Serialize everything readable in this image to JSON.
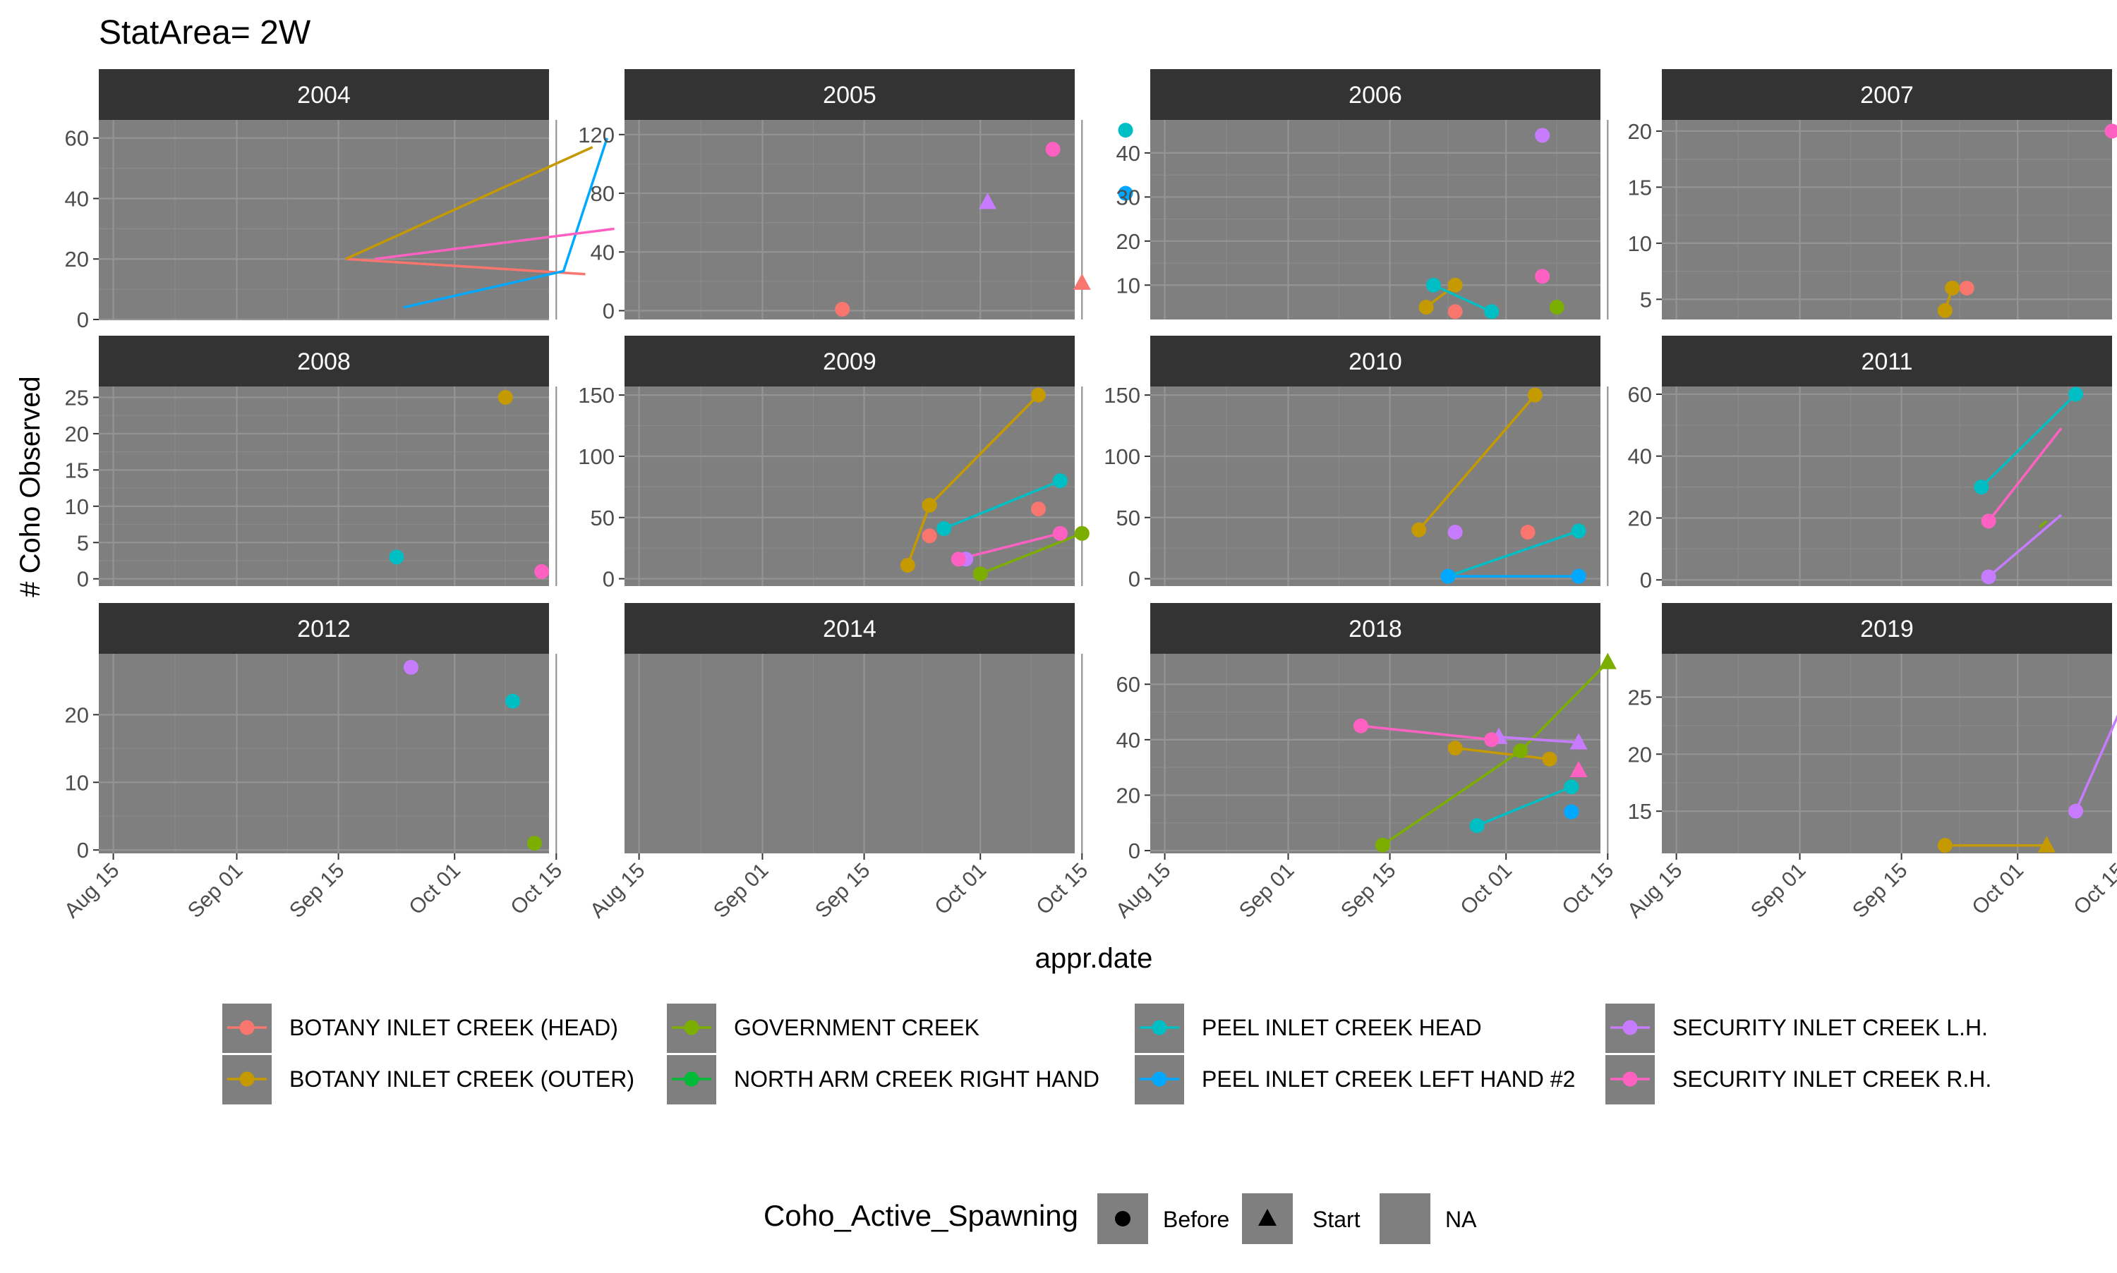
{
  "chart_data": {
    "type": "line",
    "title": "StatArea= 2W",
    "xlabel": "appr.date",
    "ylabel": "# Coho Observed",
    "x_ticks": [
      "Aug 15",
      "Sep 01",
      "Sep 15",
      "Oct 01",
      "Oct 15"
    ],
    "colors": {
      "BOTANY INLET CREEK (HEAD)": "#F8766D",
      "BOTANY INLET CREEK (OUTER)": "#C49A00",
      "GOVERNMENT CREEK": "#7CAE00",
      "NORTH ARM CREEK RIGHT HAND": "#00BA38",
      "PEEL INLET CREEK HEAD": "#00BFC4",
      "PEEL INLET CREEK LEFT HAND #2": "#00A9FF",
      "SECURITY INLET CREEK L.H.": "#C77CFF",
      "SECURITY INLET CREEK R.H.": "#FF61C3"
    },
    "legend_colour": {
      "items": [
        "BOTANY INLET CREEK (HEAD)",
        "BOTANY INLET CREEK (OUTER)",
        "GOVERNMENT CREEK",
        "NORTH ARM CREEK RIGHT HAND",
        "PEEL INLET CREEK HEAD",
        "PEEL INLET CREEK LEFT HAND #2",
        "SECURITY INLET CREEK L.H.",
        "SECURITY INLET CREEK R.H."
      ]
    },
    "legend_shape": {
      "title": "Coho_Active_Spawning",
      "items": [
        {
          "label": "Before",
          "shape": "circle"
        },
        {
          "label": "Start",
          "shape": "triangle"
        },
        {
          "label": "NA",
          "shape": "none"
        }
      ]
    },
    "grid": true,
    "legend_position": "bottom",
    "panels": [
      {
        "year": "2004",
        "ylim": [
          0,
          66
        ],
        "yticks": [
          0,
          20,
          40,
          60
        ],
        "series": [
          {
            "creek": "BOTANY INLET CREEK (HEAD)",
            "points": [
              [
                "2004-09-16",
                20,
                "NA"
              ],
              [
                "2004-10-19",
                15,
                "NA"
              ]
            ]
          },
          {
            "creek": "BOTANY INLET CREEK (OUTER)",
            "points": [
              [
                "2004-09-16",
                20,
                "NA"
              ],
              [
                "2004-10-20",
                57,
                "NA"
              ]
            ]
          },
          {
            "creek": "PEEL INLET CREEK LEFT HAND #2",
            "points": [
              [
                "2004-09-24",
                4,
                "NA"
              ],
              [
                "2004-10-16",
                16,
                "NA"
              ],
              [
                "2004-10-22",
                60,
                "NA"
              ]
            ]
          },
          {
            "creek": "SECURITY INLET CREEK R.H.",
            "points": [
              [
                "2004-09-20",
                20,
                "NA"
              ],
              [
                "2004-10-23",
                30,
                "NA"
              ]
            ]
          }
        ]
      },
      {
        "year": "2005",
        "ylim": [
          -6,
          130
        ],
        "yticks": [
          0,
          40,
          80,
          120
        ],
        "series": [
          {
            "creek": "BOTANY INLET CREEK (HEAD)",
            "points": [
              [
                "2005-09-12",
                1,
                "Before"
              ]
            ]
          },
          {
            "creek": "BOTANY INLET CREEK (HEAD)",
            "points": [
              [
                "2005-10-15",
                19,
                "Start"
              ]
            ]
          },
          {
            "creek": "PEEL INLET CREEK HEAD",
            "points": [
              [
                "2005-10-21",
                123,
                "Before"
              ]
            ]
          },
          {
            "creek": "PEEL INLET CREEK LEFT HAND #2",
            "points": [
              [
                "2005-10-21",
                80,
                "Before"
              ]
            ]
          },
          {
            "creek": "SECURITY INLET CREEK L.H.",
            "points": [
              [
                "2005-10-02",
                74,
                "Start"
              ]
            ]
          },
          {
            "creek": "SECURITY INLET CREEK R.H.",
            "points": [
              [
                "2005-10-11",
                110,
                "Before"
              ]
            ]
          }
        ]
      },
      {
        "year": "2006",
        "ylim": [
          2.2,
          47.5
        ],
        "yticks": [
          10,
          20,
          30,
          40
        ],
        "series": [
          {
            "creek": "BOTANY INLET CREEK (HEAD)",
            "points": [
              [
                "2006-09-24",
                4,
                "Before"
              ]
            ]
          },
          {
            "creek": "BOTANY INLET CREEK (OUTER)",
            "points": [
              [
                "2006-09-20",
                5,
                "Before"
              ],
              [
                "2006-09-24",
                10,
                "Before"
              ]
            ]
          },
          {
            "creek": "GOVERNMENT CREEK",
            "points": [
              [
                "2006-10-08",
                5,
                "Before"
              ]
            ]
          },
          {
            "creek": "PEEL INLET CREEK HEAD",
            "points": [
              [
                "2006-09-21",
                10,
                "Before"
              ],
              [
                "2006-09-29",
                4,
                "Before"
              ]
            ]
          },
          {
            "creek": "SECURITY INLET CREEK L.H.",
            "points": [
              [
                "2006-10-06",
                44,
                "Before"
              ]
            ]
          },
          {
            "creek": "SECURITY INLET CREEK R.H.",
            "points": [
              [
                "2006-10-06",
                12,
                "Before"
              ]
            ]
          }
        ]
      },
      {
        "year": "2007",
        "ylim": [
          3.2,
          21
        ],
        "yticks": [
          5,
          10,
          15,
          20
        ],
        "series": [
          {
            "creek": "BOTANY INLET CREEK (HEAD)",
            "points": [
              [
                "2007-09-24",
                6,
                "Before"
              ]
            ]
          },
          {
            "creek": "BOTANY INLET CREEK (OUTER)",
            "points": [
              [
                "2007-09-21",
                4,
                "Before"
              ],
              [
                "2007-09-22",
                6,
                "Before"
              ]
            ]
          },
          {
            "creek": "SECURITY INLET CREEK R.H.",
            "points": [
              [
                "2007-10-14",
                20,
                "Before"
              ]
            ]
          }
        ]
      },
      {
        "year": "2008",
        "ylim": [
          -1,
          26.5
        ],
        "yticks": [
          0,
          5,
          10,
          15,
          20,
          25
        ],
        "series": [
          {
            "creek": "BOTANY INLET CREEK (OUTER)",
            "points": [
              [
                "2008-10-08",
                25,
                "Before"
              ]
            ]
          },
          {
            "creek": "PEEL INLET CREEK HEAD",
            "points": [
              [
                "2008-09-23",
                3,
                "Before"
              ]
            ]
          },
          {
            "creek": "SECURITY INLET CREEK R.H.",
            "points": [
              [
                "2008-10-13",
                1,
                "Before"
              ]
            ]
          }
        ]
      },
      {
        "year": "2009",
        "ylim": [
          -6,
          157
        ],
        "yticks": [
          0,
          50,
          100,
          150
        ],
        "series": [
          {
            "creek": "BOTANY INLET CREEK (HEAD)",
            "points": [
              [
                "2009-09-24",
                35,
                "Before"
              ]
            ]
          },
          {
            "creek": "BOTANY INLET CREEK (HEAD)",
            "points": [
              [
                "2009-10-09",
                57,
                "Before"
              ]
            ]
          },
          {
            "creek": "BOTANY INLET CREEK (OUTER)",
            "points": [
              [
                "2009-09-21",
                11,
                "Before"
              ],
              [
                "2009-09-24",
                60,
                "Before"
              ],
              [
                "2009-10-09",
                150,
                "Before"
              ]
            ]
          },
          {
            "creek": "GOVERNMENT CREEK",
            "points": [
              [
                "2009-10-01",
                4,
                "Before"
              ],
              [
                "2009-10-15",
                37,
                "Before"
              ]
            ]
          },
          {
            "creek": "PEEL INLET CREEK HEAD",
            "points": [
              [
                "2009-09-26",
                41,
                "Before"
              ],
              [
                "2009-10-12",
                80,
                "Before"
              ]
            ]
          },
          {
            "creek": "PEEL INLET CREEK LEFT HAND #2",
            "points": [
              [
                "2009-09-29",
                16,
                "Before"
              ]
            ]
          },
          {
            "creek": "SECURITY INLET CREEK L.H.",
            "points": [
              [
                "2009-09-29",
                16,
                "Before"
              ]
            ]
          },
          {
            "creek": "SECURITY INLET CREEK R.H.",
            "points": [
              [
                "2009-09-28",
                16,
                "Before"
              ],
              [
                "2009-10-12",
                37,
                "Before"
              ]
            ]
          }
        ]
      },
      {
        "year": "2010",
        "ylim": [
          -6,
          157
        ],
        "yticks": [
          0,
          50,
          100,
          150
        ],
        "series": [
          {
            "creek": "BOTANY INLET CREEK (HEAD)",
            "points": [
              [
                "2010-10-04",
                38,
                "Before"
              ]
            ]
          },
          {
            "creek": "BOTANY INLET CREEK (OUTER)",
            "points": [
              [
                "2010-09-19",
                40,
                "Before"
              ],
              [
                "2010-10-05",
                150,
                "Before"
              ]
            ]
          },
          {
            "creek": "PEEL INLET CREEK HEAD",
            "points": [
              [
                "2010-09-23",
                2,
                "Before"
              ],
              [
                "2010-10-11",
                39,
                "Before"
              ]
            ]
          },
          {
            "creek": "PEEL INLET CREEK LEFT HAND #2",
            "points": [
              [
                "2010-09-23",
                2,
                "Before"
              ],
              [
                "2010-10-11",
                2,
                "Before"
              ]
            ]
          },
          {
            "creek": "SECURITY INLET CREEK L.H.",
            "points": [
              [
                "2010-09-24",
                38,
                "Before"
              ]
            ]
          }
        ]
      },
      {
        "year": "2011",
        "ylim": [
          -2,
          62.5
        ],
        "yticks": [
          0,
          20,
          40,
          60
        ],
        "series": [
          {
            "creek": "GOVERNMENT CREEK",
            "points": [
              [
                "2011-10-04",
                17,
                "NA"
              ],
              [
                "2011-10-05",
                19,
                "NA"
              ]
            ]
          },
          {
            "creek": "PEEL INLET CREEK HEAD",
            "points": [
              [
                "2011-09-26",
                30,
                "Before"
              ],
              [
                "2011-10-09",
                60,
                "Before"
              ]
            ]
          },
          {
            "creek": "SECURITY INLET CREEK L.H.",
            "points": [
              [
                "2011-09-27",
                1,
                "Before"
              ],
              [
                "2011-10-07",
                21,
                "NA"
              ]
            ]
          },
          {
            "creek": "SECURITY INLET CREEK R.H.",
            "points": [
              [
                "2011-09-27",
                19,
                "Before"
              ],
              [
                "2011-10-07",
                49,
                "NA"
              ]
            ]
          }
        ]
      },
      {
        "year": "2012",
        "ylim": [
          -0.5,
          29
        ],
        "yticks": [
          0,
          10,
          20
        ],
        "series": [
          {
            "creek": "GOVERNMENT CREEK",
            "points": [
              [
                "2012-10-12",
                1,
                "Before"
              ]
            ]
          },
          {
            "creek": "PEEL INLET CREEK HEAD",
            "points": [
              [
                "2012-10-09",
                22,
                "Before"
              ]
            ]
          },
          {
            "creek": "SECURITY INLET CREEK L.H.",
            "points": [
              [
                "2012-09-25",
                27,
                "Before"
              ]
            ]
          }
        ]
      },
      {
        "year": "2014",
        "ylim": [
          0,
          1
        ],
        "yticks": [],
        "series": []
      },
      {
        "year": "2018",
        "ylim": [
          -1,
          71
        ],
        "yticks": [
          0,
          20,
          40,
          60
        ],
        "series": [
          {
            "creek": "BOTANY INLET CREEK (OUTER)",
            "points": [
              [
                "2018-09-24",
                37,
                "Before"
              ],
              [
                "2018-10-07",
                33,
                "Before"
              ]
            ]
          },
          {
            "creek": "GOVERNMENT CREEK",
            "points": [
              [
                "2018-09-14",
                2,
                "Before"
              ],
              [
                "2018-10-03",
                36,
                "Before"
              ],
              [
                "2018-10-15",
                68,
                "Start"
              ]
            ]
          },
          {
            "creek": "PEEL INLET CREEK HEAD",
            "points": [
              [
                "2018-09-27",
                9,
                "Before"
              ],
              [
                "2018-10-10",
                23,
                "Before"
              ]
            ]
          },
          {
            "creek": "PEEL INLET CREEK LEFT HAND #2",
            "points": [
              [
                "2018-10-10",
                14,
                "Before"
              ]
            ]
          },
          {
            "creek": "SECURITY INLET CREEK L.H.",
            "points": [
              [
                "2018-09-30",
                41,
                "Start"
              ],
              [
                "2018-10-11",
                39,
                "Start"
              ]
            ]
          },
          {
            "creek": "SECURITY INLET CREEK R.H.",
            "points": [
              [
                "2018-09-11",
                45,
                "Before"
              ],
              [
                "2018-09-29",
                40,
                "Before"
              ]
            ]
          },
          {
            "creek": "SECURITY INLET CREEK R.H.",
            "points": [
              [
                "2018-10-11",
                29,
                "Start"
              ]
            ]
          }
        ]
      },
      {
        "year": "2019",
        "ylim": [
          11.3,
          28.8
        ],
        "yticks": [
          15,
          20,
          25
        ],
        "series": [
          {
            "creek": "BOTANY INLET CREEK (OUTER)",
            "points": [
              [
                "2019-09-21",
                12,
                "Before"
              ],
              [
                "2019-10-05",
                12,
                "Start"
              ]
            ]
          },
          {
            "creek": "SECURITY INLET CREEK L.H.",
            "points": [
              [
                "2019-10-09",
                15,
                "Before"
              ],
              [
                "2019-10-18",
                28,
                "Before"
              ]
            ]
          }
        ]
      }
    ]
  }
}
